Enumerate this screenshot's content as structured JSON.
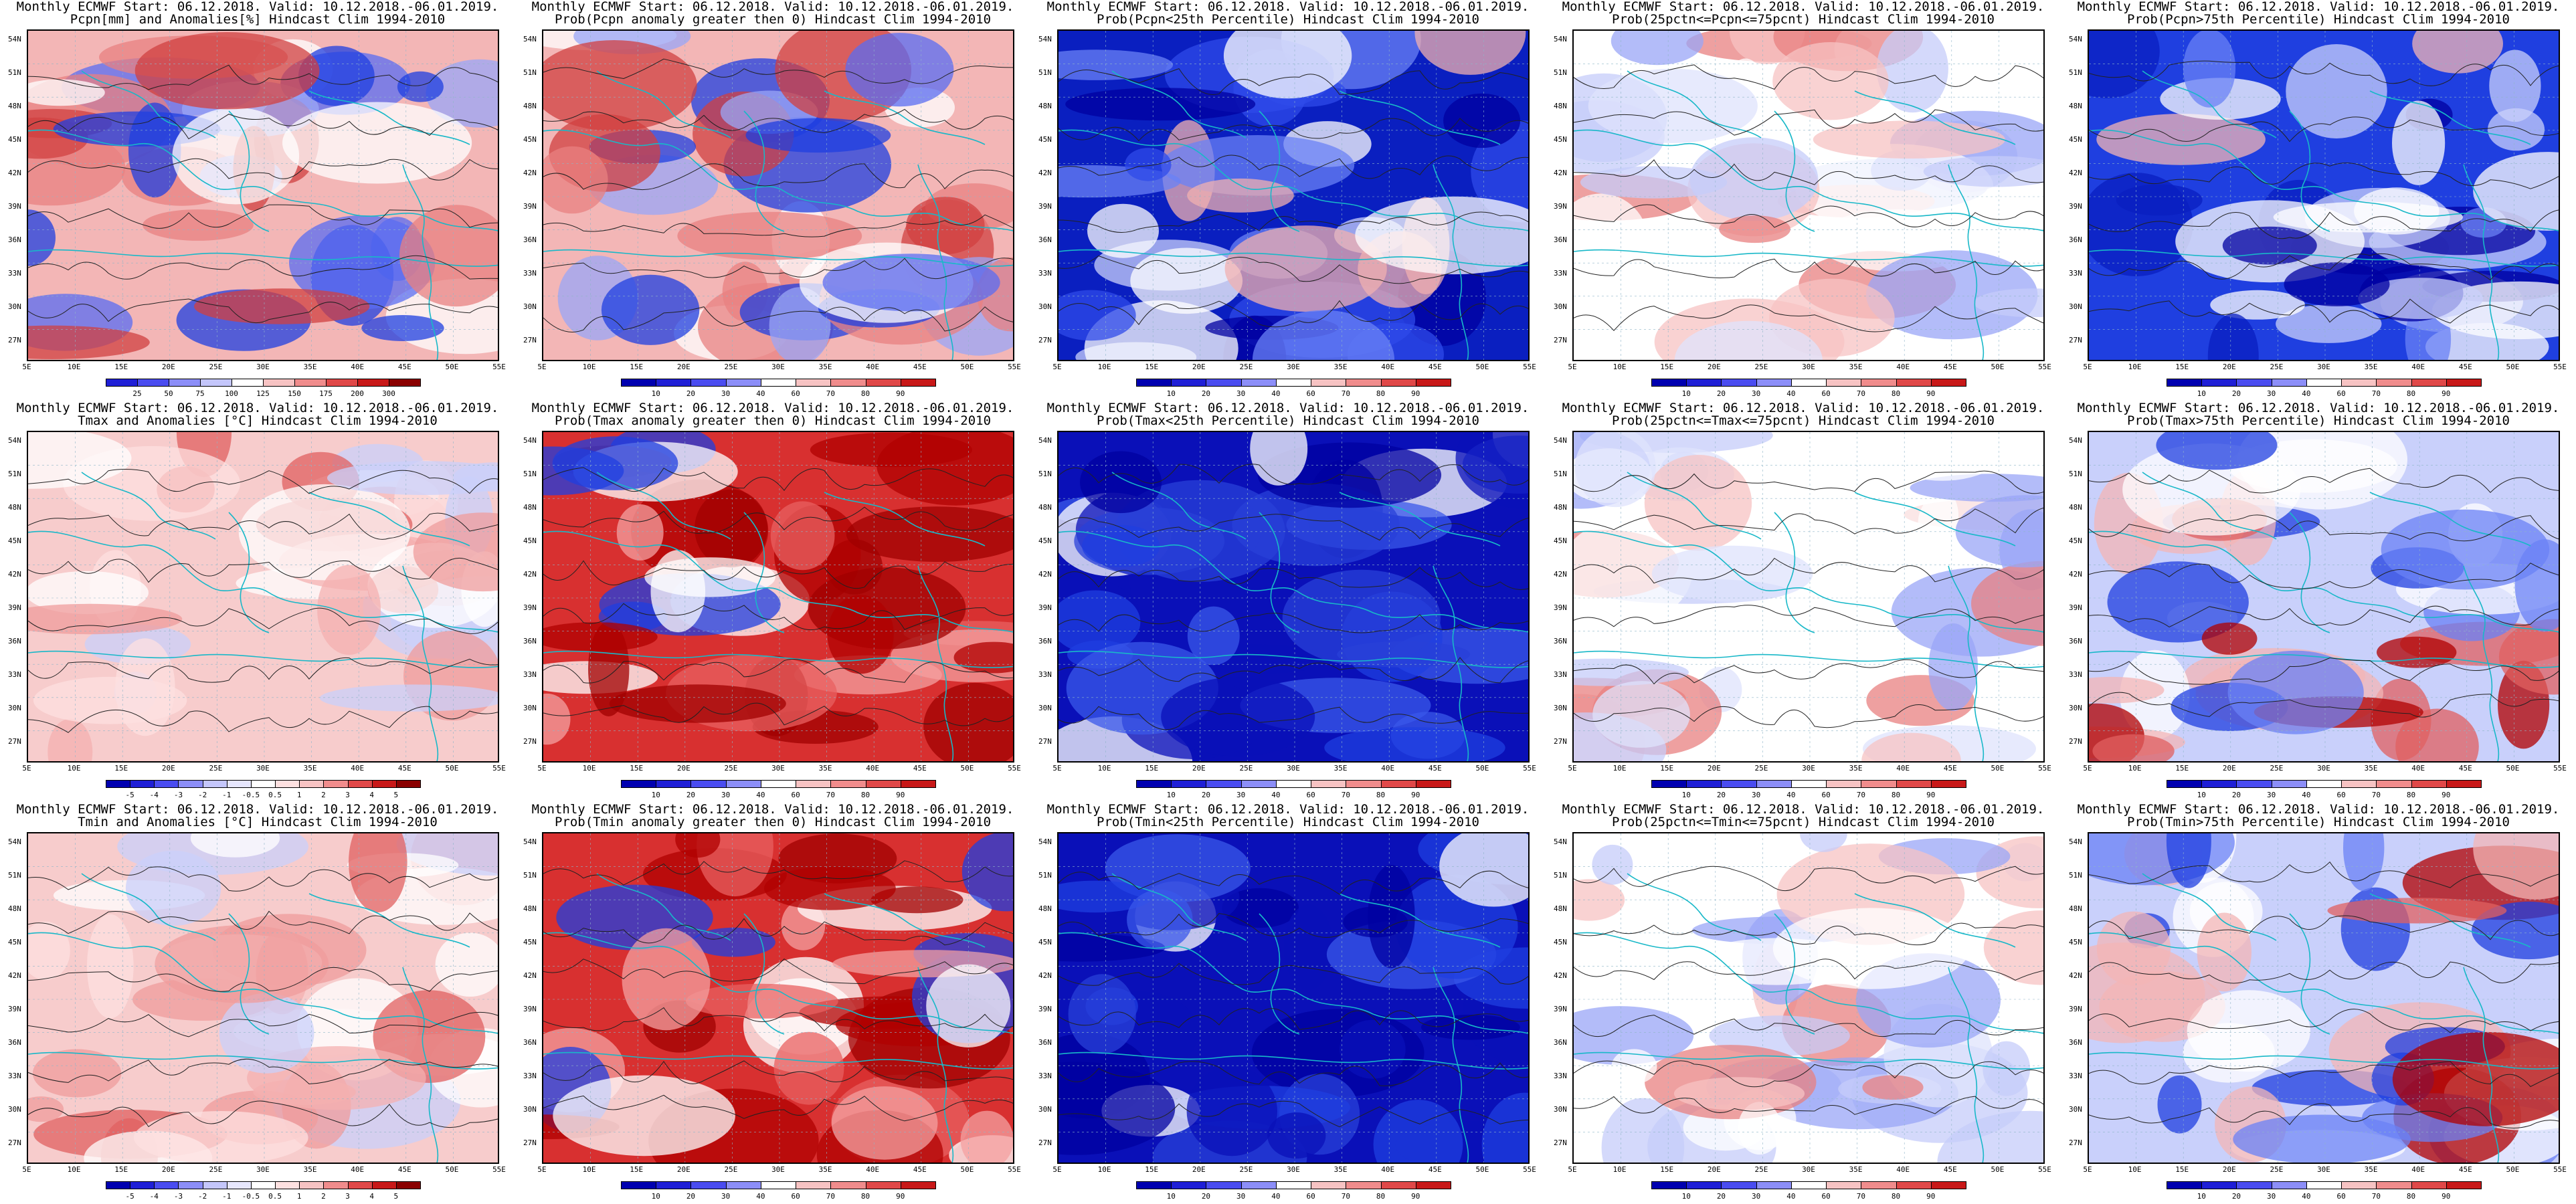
{
  "header_line": "Monthly ECMWF Start: 06.12.2018. Valid: 10.12.2018.-06.01.2019.",
  "lat_labels": [
    "54N",
    "51N",
    "48N",
    "45N",
    "42N",
    "39N",
    "36N",
    "33N",
    "30N",
    "27N"
  ],
  "lon_labels": [
    "5E",
    "10E",
    "15E",
    "20E",
    "25E",
    "30E",
    "35E",
    "40E",
    "45E",
    "50E",
    "55E"
  ],
  "colorbars": {
    "precip_anom": {
      "labels": [
        "25",
        "50",
        "75",
        "100",
        "125",
        "150",
        "175",
        "200",
        "300"
      ],
      "colors": [
        "#1f1fd6",
        "#4a4cf0",
        "#8c8ef8",
        "#c4c6fb",
        "#ffffff",
        "#f7c3c3",
        "#f08c8c",
        "#e04848",
        "#c81818",
        "#8a0000"
      ]
    },
    "temp_anom": {
      "labels": [
        "-5",
        "-4",
        "-3",
        "-2",
        "-1",
        "-0.5",
        "0.5",
        "1",
        "2",
        "3",
        "4",
        "5"
      ],
      "colors": [
        "#0000b0",
        "#1f1fd6",
        "#4a4cf0",
        "#8c8ef8",
        "#c4c6fb",
        "#e6e6fd",
        "#ffffff",
        "#fde0e0",
        "#f7c3c3",
        "#f08c8c",
        "#e04848",
        "#c81818",
        "#8a0000"
      ]
    },
    "prob": {
      "labels": [
        "10",
        "20",
        "30",
        "40",
        "60",
        "70",
        "80",
        "90"
      ],
      "colors": [
        "#0000b0",
        "#1f1fd6",
        "#4a4cf0",
        "#8c8ef8",
        "#ffffff",
        "#f7c3c3",
        "#f08c8c",
        "#e04848",
        "#c81818"
      ]
    }
  },
  "panels": [
    {
      "row": 0,
      "col": 0,
      "title": "Pcpn[mm] and Anomalies[%] Hindcast Clim 1994-2010",
      "cb": "precip_anom",
      "field": "mixed-precip"
    },
    {
      "row": 0,
      "col": 1,
      "title": "Prob(Pcpn anomaly greater then 0) Hindcast Clim 1994-2010",
      "cb": "prob",
      "field": "mixed-precip"
    },
    {
      "row": 0,
      "col": 2,
      "title": "Prob(Pcpn<25th Percentile) Hindcast Clim 1994-2010",
      "cb": "prob",
      "field": "blue-north"
    },
    {
      "row": 0,
      "col": 3,
      "title": "Prob(25pctn<=Pcpn<=75pcnt) Hindcast Clim 1994-2010",
      "cb": "prob",
      "field": "neutral"
    },
    {
      "row": 0,
      "col": 4,
      "title": "Prob(Pcpn>75th Percentile) Hindcast Clim 1994-2010",
      "cb": "prob",
      "field": "blue-south"
    },
    {
      "row": 1,
      "col": 0,
      "title": "Tmax and Anomalies [°C] Hindcast Clim 1994-2010",
      "cb": "temp_anom",
      "field": "warm-light"
    },
    {
      "row": 1,
      "col": 1,
      "title": "Prob(Tmax anomaly greater then 0) Hindcast Clim 1994-2010",
      "cb": "prob",
      "field": "warm-strong"
    },
    {
      "row": 1,
      "col": 2,
      "title": "Prob(Tmax<25th Percentile) Hindcast Clim 1994-2010",
      "cb": "prob",
      "field": "blue-dark"
    },
    {
      "row": 1,
      "col": 3,
      "title": "Prob(25pctn<=Tmax<=75pcnt) Hindcast Clim 1994-2010",
      "cb": "prob",
      "field": "neutral"
    },
    {
      "row": 1,
      "col": 4,
      "title": "Prob(Tmax>75th Percentile) Hindcast Clim 1994-2010",
      "cb": "prob",
      "field": "mixed-warm"
    },
    {
      "row": 2,
      "col": 0,
      "title": "Tmin and Anomalies [°C] Hindcast Clim 1994-2010",
      "cb": "temp_anom",
      "field": "warm-light"
    },
    {
      "row": 2,
      "col": 1,
      "title": "Prob(Tmin anomaly greater then 0) Hindcast Clim 1994-2010",
      "cb": "prob",
      "field": "warm-strong"
    },
    {
      "row": 2,
      "col": 2,
      "title": "Prob(Tmin<25th Percentile) Hindcast Clim 1994-2010",
      "cb": "prob",
      "field": "blue-dark"
    },
    {
      "row": 2,
      "col": 3,
      "title": "Prob(25pctn<=Tmin<=75pcnt) Hindcast Clim 1994-2010",
      "cb": "prob",
      "field": "neutral"
    },
    {
      "row": 2,
      "col": 4,
      "title": "Prob(Tmin>75th Percentile) Hindcast Clim 1994-2010",
      "cb": "prob",
      "field": "mixed-warm"
    }
  ]
}
